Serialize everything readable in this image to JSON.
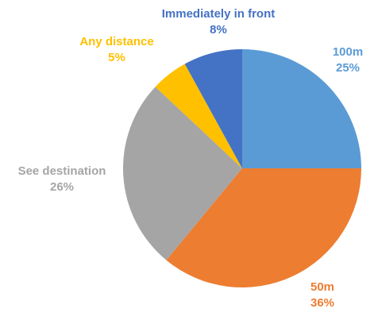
{
  "chart_data": {
    "type": "pie",
    "title": "",
    "slices": [
      {
        "label": "100m",
        "value": 25,
        "value_label": "25%",
        "color": "#5B9BD5"
      },
      {
        "label": "50m",
        "value": 36,
        "value_label": "36%",
        "color": "#ED7D31"
      },
      {
        "label": "See destination",
        "value": 26,
        "value_label": "26%",
        "color": "#A5A5A5"
      },
      {
        "label": "Any distance",
        "value": 5,
        "value_label": "5%",
        "color": "#FFC000"
      },
      {
        "label": "Immediately in front",
        "value": 8,
        "value_label": "8%",
        "color": "#4472C4"
      }
    ],
    "start_angle": "12 o'clock",
    "direction": "clockwise",
    "legend": "none",
    "data_labels": "outside, category name and percentage"
  }
}
